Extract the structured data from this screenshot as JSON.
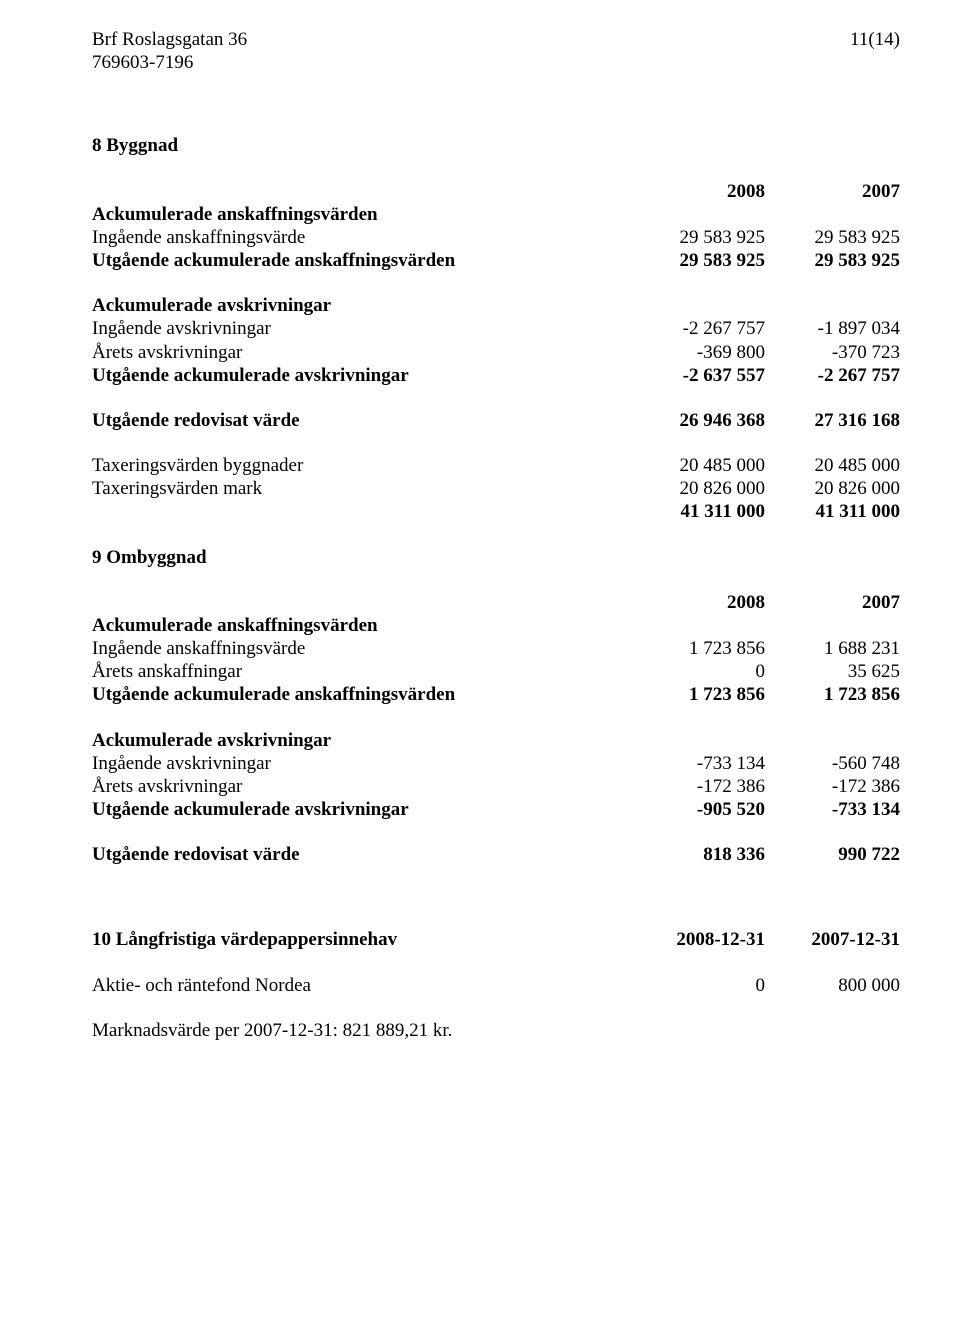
{
  "header": {
    "org_name": "Brf Roslagsgatan 36",
    "org_num": "769603-7196",
    "page_num": "11(14)"
  },
  "note8": {
    "title": "8 Byggnad",
    "year1": "2008",
    "year2": "2007",
    "acq_heading": "Ackumulerade anskaffningsvärden",
    "rows_acq": [
      {
        "label": "Ingående anskaffningsvärde",
        "c1": "29 583 925",
        "c2": "29 583 925",
        "bold": false
      },
      {
        "label": "Utgående ackumulerade anskaffningsvärden",
        "c1": "29 583 925",
        "c2": "29 583 925",
        "bold": true
      }
    ],
    "dep_heading": "Ackumulerade avskrivningar",
    "rows_dep": [
      {
        "label": "Ingående avskrivningar",
        "c1": "-2 267 757",
        "c2": "-1 897 034",
        "bold": false
      },
      {
        "label": "Årets avskrivningar",
        "c1": "-369 800",
        "c2": "-370 723",
        "bold": false
      },
      {
        "label": "Utgående ackumulerade avskrivningar",
        "c1": "-2 637 557",
        "c2": "-2 267 757",
        "bold": true
      }
    ],
    "book_value": {
      "label": "Utgående redovisat värde",
      "c1": "26 946 368",
      "c2": "27 316 168"
    },
    "tax_rows": [
      {
        "label": "Taxeringsvärden byggnader",
        "c1": "20 485 000",
        "c2": "20 485 000",
        "bold": false
      },
      {
        "label": "Taxeringsvärden mark",
        "c1": "20 826 000",
        "c2": "20 826 000",
        "bold": false
      },
      {
        "label": "",
        "c1": "41 311 000",
        "c2": "41 311 000",
        "bold": true
      }
    ]
  },
  "note9": {
    "title": "9 Ombyggnad",
    "year1": "2008",
    "year2": "2007",
    "acq_heading": "Ackumulerade anskaffningsvärden",
    "rows_acq": [
      {
        "label": "Ingående anskaffningsvärde",
        "c1": "1 723 856",
        "c2": "1 688 231",
        "bold": false
      },
      {
        "label": "Årets anskaffningar",
        "c1": "0",
        "c2": "35 625",
        "bold": false
      },
      {
        "label": "Utgående ackumulerade anskaffningsvärden",
        "c1": "1 723 856",
        "c2": "1 723 856",
        "bold": true
      }
    ],
    "dep_heading": "Ackumulerade avskrivningar",
    "rows_dep": [
      {
        "label": "Ingående avskrivningar",
        "c1": "-733 134",
        "c2": "-560 748",
        "bold": false
      },
      {
        "label": "Årets avskrivningar",
        "c1": "-172 386",
        "c2": "-172 386",
        "bold": false
      },
      {
        "label": "Utgående ackumulerade avskrivningar",
        "c1": "-905 520",
        "c2": "-733 134",
        "bold": true
      }
    ],
    "book_value": {
      "label": "Utgående redovisat värde",
      "c1": "818 336",
      "c2": "990 722"
    }
  },
  "note10": {
    "title": "10 Långfristiga värdepappersinnehav",
    "year1": "2008-12-31",
    "year2": "2007-12-31",
    "rows": [
      {
        "label": "Aktie- och räntefond Nordea",
        "c1": "0",
        "c2": "800 000",
        "bold": false
      }
    ],
    "footnote": "Marknadsvärde per 2007-12-31: 821 889,21 kr."
  }
}
